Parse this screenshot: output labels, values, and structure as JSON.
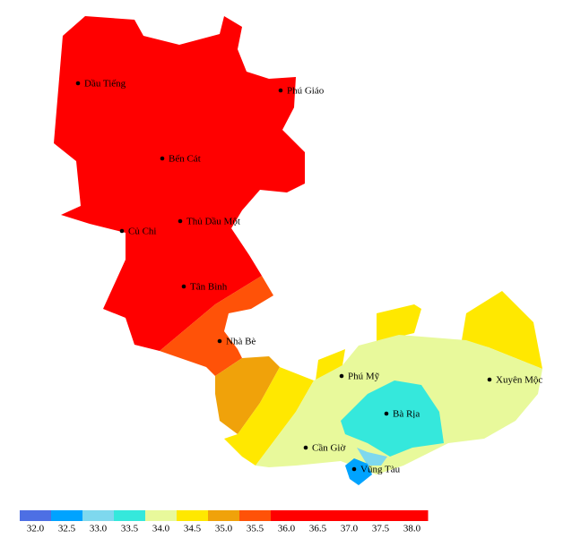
{
  "map": {
    "places": [
      "Dầu Tiếng",
      "Phú Giáo",
      "Bến Cát",
      "Thủ Dầu Một",
      "Củ Chi",
      "Tân Bình",
      "Nhà Bè",
      "Phú Mỹ",
      "Xuyên Mộc",
      "Bà Rịa",
      "Cần Giờ",
      "Vũng Tàu"
    ]
  },
  "legend": {
    "ticks": [
      {
        "value": 32,
        "label": "32.0"
      },
      {
        "value": 32.5,
        "label": "32.5"
      },
      {
        "value": 33,
        "label": "33.0"
      },
      {
        "value": 33.5,
        "label": "33.5"
      },
      {
        "value": 34,
        "label": "34.0"
      },
      {
        "value": 34.5,
        "label": "34.5"
      },
      {
        "value": 35,
        "label": "35.0"
      },
      {
        "value": 35.5,
        "label": "35.5"
      },
      {
        "value": 36,
        "label": "36.0"
      },
      {
        "value": 36.5,
        "label": "36.5"
      },
      {
        "value": 37,
        "label": "37.0"
      },
      {
        "value": 37.5,
        "label": "37.5"
      },
      {
        "value": 38,
        "label": "38.0"
      }
    ],
    "colors": [
      "#4d6fe4",
      "#00a3ff",
      "#7ed8ee",
      "#35e8dc",
      "#e8f99b",
      "#ffe800",
      "#f0a20a",
      "#ff5208",
      "#ff0000",
      "#ff0000",
      "#ff0000",
      "#ff0000",
      "#ff0000"
    ]
  }
}
